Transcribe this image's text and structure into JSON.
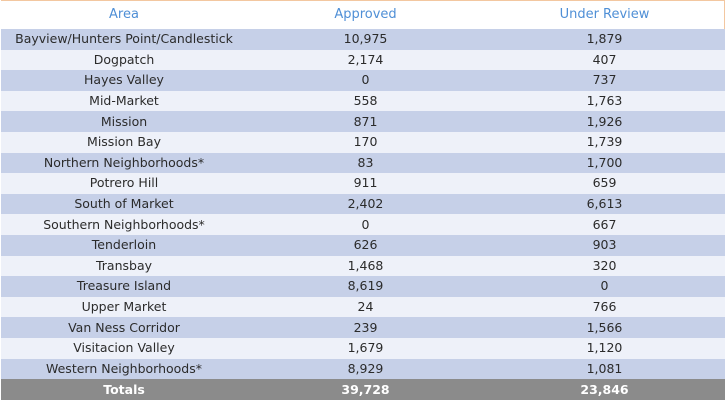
{
  "table": {
    "headers": [
      "Area",
      "Approved",
      "Under Review"
    ],
    "rows": [
      {
        "area": "Bayview/Hunters Point/Candlestick",
        "approved": "10,975",
        "review": "1,879"
      },
      {
        "area": "Dogpatch",
        "approved": "2,174",
        "review": "407"
      },
      {
        "area": "Hayes Valley",
        "approved": "0",
        "review": "737"
      },
      {
        "area": "Mid-Market",
        "approved": "558",
        "review": "1,763"
      },
      {
        "area": "Mission",
        "approved": "871",
        "review": "1,926"
      },
      {
        "area": "Mission Bay",
        "approved": "170",
        "review": "1,739"
      },
      {
        "area": "Northern Neighborhoods*",
        "approved": "83",
        "review": "1,700"
      },
      {
        "area": "Potrero Hill",
        "approved": "911",
        "review": "659"
      },
      {
        "area": "South of Market",
        "approved": "2,402",
        "review": "6,613"
      },
      {
        "area": "Southern Neighborhoods*",
        "approved": "0",
        "review": "667"
      },
      {
        "area": "Tenderloin",
        "approved": "626",
        "review": "903"
      },
      {
        "area": "Transbay",
        "approved": "1,468",
        "review": "320"
      },
      {
        "area": "Treasure Island",
        "approved": "8,619",
        "review": "0"
      },
      {
        "area": "Upper Market",
        "approved": "24",
        "review": "766"
      },
      {
        "area": "Van Ness Corridor",
        "approved": "239",
        "review": "1,566"
      },
      {
        "area": "Visitacion Valley",
        "approved": "1,679",
        "review": "1,120"
      },
      {
        "area": "Western Neighborhoods*",
        "approved": "8,929",
        "review": "1,081"
      }
    ],
    "totals": {
      "label": "Totals",
      "approved": "39,728",
      "review": "23,846"
    }
  },
  "colors": {
    "header_text": "#4f8fd6",
    "row_dark": "#c6d0e8",
    "row_light": "#eef1f9",
    "totals_bg": "#8b8b8b"
  }
}
